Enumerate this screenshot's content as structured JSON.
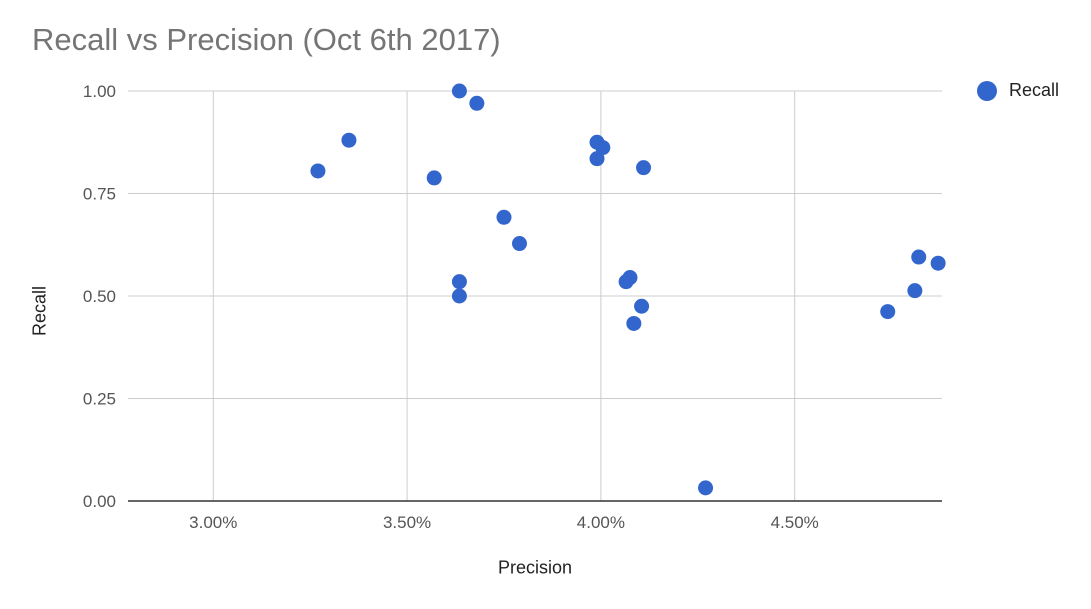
{
  "chart_data": {
    "type": "scatter",
    "title": "Recall vs Precision (Oct 6th 2017)",
    "xlabel": "Precision",
    "ylabel": "Recall",
    "xlim": [
      2.78,
      4.88
    ],
    "ylim": [
      0,
      1
    ],
    "x_ticks": [
      3.0,
      3.5,
      4.0,
      4.5
    ],
    "x_tick_labels": [
      "3.00%",
      "3.50%",
      "4.00%",
      "4.50%"
    ],
    "y_ticks": [
      0,
      0.25,
      0.5,
      0.75,
      1.0
    ],
    "y_tick_labels": [
      "0.00",
      "0.25",
      "0.50",
      "0.75",
      "1.00"
    ],
    "grid": true,
    "legend_position": "right",
    "series": [
      {
        "name": "Recall",
        "color": "#3366cc",
        "points": [
          {
            "x": 3.27,
            "y": 0.805
          },
          {
            "x": 3.35,
            "y": 0.88
          },
          {
            "x": 3.57,
            "y": 0.788
          },
          {
            "x": 3.635,
            "y": 1.0
          },
          {
            "x": 3.68,
            "y": 0.97
          },
          {
            "x": 3.635,
            "y": 0.535
          },
          {
            "x": 3.635,
            "y": 0.5
          },
          {
            "x": 3.75,
            "y": 0.692
          },
          {
            "x": 3.79,
            "y": 0.628
          },
          {
            "x": 3.99,
            "y": 0.875
          },
          {
            "x": 4.005,
            "y": 0.862
          },
          {
            "x": 3.99,
            "y": 0.835
          },
          {
            "x": 4.11,
            "y": 0.813
          },
          {
            "x": 4.065,
            "y": 0.535
          },
          {
            "x": 4.075,
            "y": 0.545
          },
          {
            "x": 4.105,
            "y": 0.475
          },
          {
            "x": 4.085,
            "y": 0.433
          },
          {
            "x": 4.27,
            "y": 0.032
          },
          {
            "x": 4.74,
            "y": 0.462
          },
          {
            "x": 4.81,
            "y": 0.513
          },
          {
            "x": 4.82,
            "y": 0.595
          },
          {
            "x": 4.87,
            "y": 0.58
          }
        ]
      }
    ]
  }
}
